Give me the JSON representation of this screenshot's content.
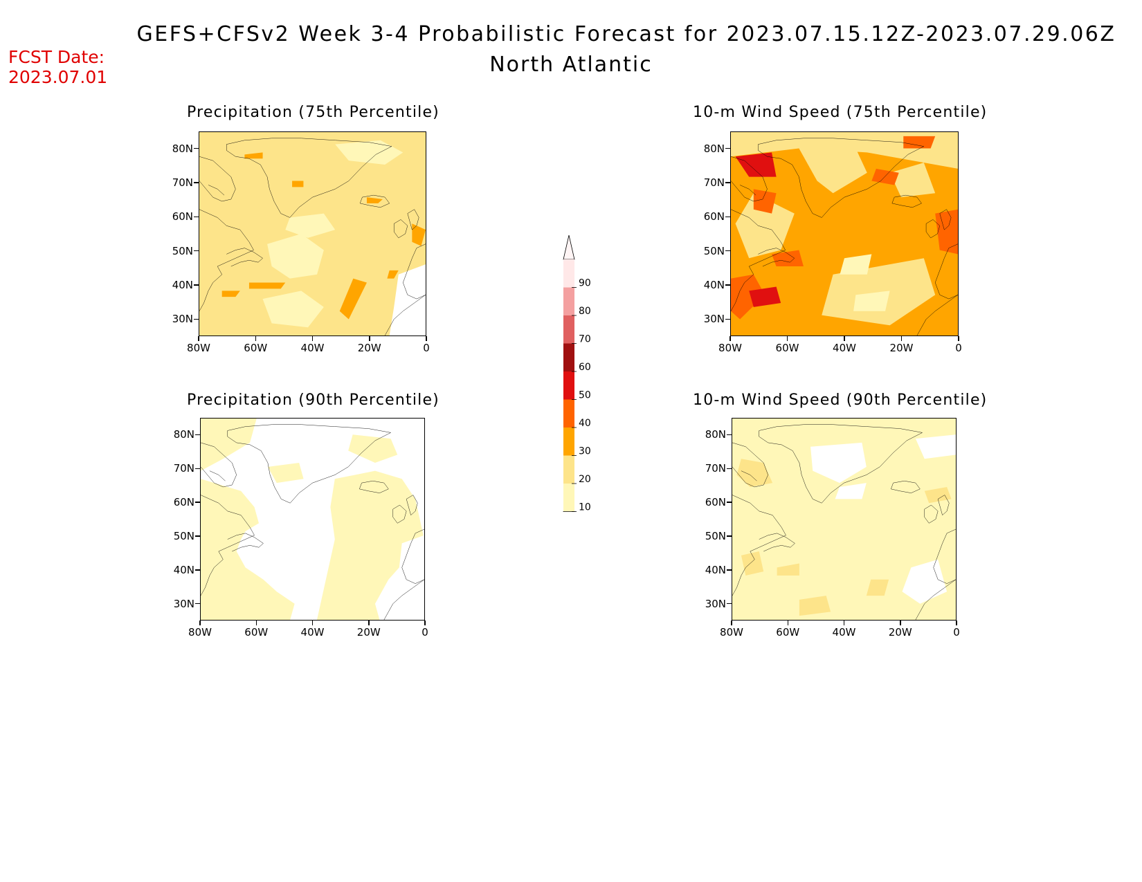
{
  "title_line1": "GEFS+CFSv2 Week 3-4 Probabilistic Forecast for 2023.07.15.12Z-2023.07.29.06Z",
  "title_line2": "North Atlantic",
  "fcst_label": "FCST Date:",
  "fcst_date": "2023.07.01",
  "panels": [
    {
      "title": "Precipitation (75th Percentile)",
      "background_color": "#fde48a"
    },
    {
      "title": "10-m Wind Speed (75th Percentile)",
      "background_color": "#ffa500"
    },
    {
      "title": "Precipitation (90th Percentile)",
      "background_color": "#ffffff"
    },
    {
      "title": "10-m Wind Speed (90th Percentile)",
      "background_color": "#fff7b8"
    }
  ],
  "lat_ticks": [
    "80N",
    "70N",
    "60N",
    "50N",
    "40N",
    "30N"
  ],
  "lon_ticks": [
    "80W",
    "60W",
    "40W",
    "20W",
    "0"
  ],
  "colorbar": {
    "levels": [
      "90",
      "80",
      "70",
      "60",
      "50",
      "40",
      "30",
      "20",
      "10"
    ],
    "colors": [
      "#ffe8e8",
      "#f4a0a0",
      "#e06060",
      "#a01010",
      "#e01010",
      "#ff6400",
      "#ffa500",
      "#fde48a",
      "#fff7b8"
    ]
  },
  "palette": {
    "white": "#ffffff",
    "pale_yellow": "#fff7b8",
    "yellow": "#fde48a",
    "orange": "#ffa500",
    "dark_orange": "#ff6400",
    "red": "#e01010",
    "title_red": "#e00000"
  }
}
